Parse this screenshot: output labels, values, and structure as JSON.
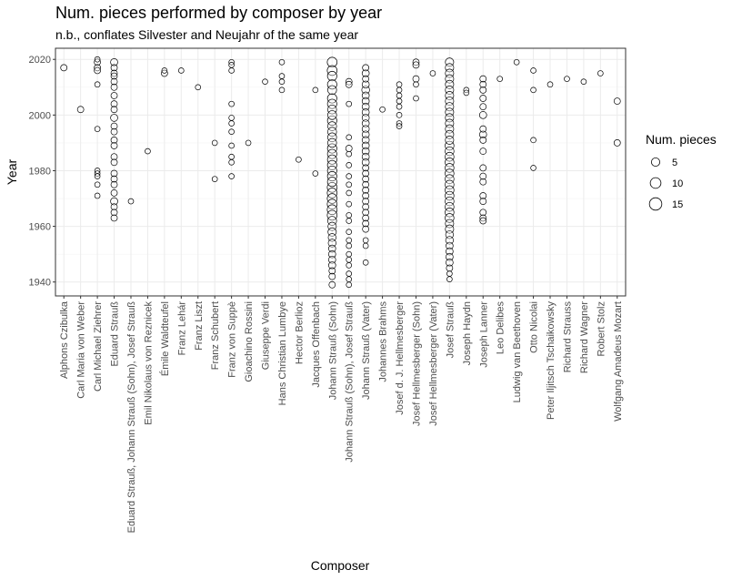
{
  "chart_data": {
    "type": "scatter",
    "title": "Num. pieces performed by composer by year",
    "subtitle": "n.b., conflates Silvester and Neujahr of the same year",
    "xlabel": "Composer",
    "ylabel": "Year",
    "ylim": [
      1935,
      2024
    ],
    "yticks": [
      1940,
      1960,
      1980,
      2000,
      2020
    ],
    "grid": true,
    "legend": {
      "title": "Num. pieces",
      "placement": "right",
      "entries": [
        5,
        10,
        15
      ]
    },
    "categories": [
      "Alphons Czibulka",
      "Carl Maria von Weber",
      "Carl Michael Ziehrer",
      "Eduard Strauß",
      "Eduard Strauß, Johann Strauß (Sohn), Josef Strauß",
      "Emil Nikolaus von Reznicek",
      "Émile Waldteufel",
      "Franz Lehár",
      "Franz Liszt",
      "Franz Schubert",
      "Franz von Suppè",
      "Gioachino Rossini",
      "Giuseppe Verdi",
      "Hans Christian Lumbye",
      "Hector Berlioz",
      "Jacques Offenbach",
      "Johann Strauß (Sohn)",
      "Johann Strauß (Sohn), Josef Strauß",
      "Johann Strauß (Vater)",
      "Johannes Brahms",
      "Josef d. J. Hellmesberger",
      "Josef Hellmesberger (Sohn)",
      "Josef Hellmesberger (Vater)",
      "Josef Strauß",
      "Joseph Haydn",
      "Joseph Lanner",
      "Leo Delibes",
      "Ludwig van Beethoven",
      "Otto Nicolai",
      "Peter Iljitsch Tschaikowsky",
      "Richard Strauss",
      "Richard Wagner",
      "Robert Stolz",
      "Wolfgang Amadeus Mozart"
    ],
    "points": [
      {
        "c": "Alphons Czibulka",
        "pairs": [
          [
            2017,
            2
          ]
        ]
      },
      {
        "c": "Carl Maria von Weber",
        "pairs": [
          [
            2002,
            2
          ]
        ]
      },
      {
        "c": "Carl Michael Ziehrer",
        "pairs": [
          [
            2020,
            1
          ],
          [
            2019,
            2
          ],
          [
            2017,
            2
          ],
          [
            2016,
            2
          ],
          [
            2011,
            1
          ],
          [
            1995,
            1
          ],
          [
            1980,
            1
          ],
          [
            1979,
            1
          ],
          [
            1978,
            1
          ],
          [
            1975,
            1
          ],
          [
            1971,
            1
          ]
        ]
      },
      {
        "c": "Eduard Strauß",
        "pairs": [
          [
            2019,
            3
          ],
          [
            2017,
            2
          ],
          [
            2015,
            2
          ],
          [
            2014,
            2
          ],
          [
            2012,
            2
          ],
          [
            2010,
            2
          ],
          [
            2007,
            2
          ],
          [
            2004,
            2
          ],
          [
            2002,
            2
          ],
          [
            1999,
            3
          ],
          [
            1996,
            2
          ],
          [
            1994,
            2
          ],
          [
            1991,
            2
          ],
          [
            1989,
            2
          ],
          [
            1985,
            2
          ],
          [
            1983,
            2
          ],
          [
            1979,
            2
          ],
          [
            1977,
            2
          ],
          [
            1975,
            2
          ],
          [
            1972,
            2
          ],
          [
            1969,
            3
          ],
          [
            1967,
            2
          ],
          [
            1965,
            2
          ],
          [
            1963,
            2
          ]
        ]
      },
      {
        "c": "Eduard Strauß, Johann Strauß (Sohn), Josef Strauß",
        "pairs": [
          [
            1969,
            1
          ]
        ]
      },
      {
        "c": "Emil Nikolaus von Reznicek",
        "pairs": [
          [
            1987,
            1
          ]
        ]
      },
      {
        "c": "Émile Waldteufel",
        "pairs": [
          [
            2016,
            1
          ],
          [
            2015,
            2
          ]
        ]
      },
      {
        "c": "Franz Lehár",
        "pairs": [
          [
            2016,
            1
          ]
        ]
      },
      {
        "c": "Franz Liszt",
        "pairs": [
          [
            2010,
            1
          ]
        ]
      },
      {
        "c": "Franz Schubert",
        "pairs": [
          [
            1990,
            1
          ],
          [
            1977,
            1
          ]
        ]
      },
      {
        "c": "Franz von Suppè",
        "pairs": [
          [
            2019,
            1
          ],
          [
            2018,
            1
          ],
          [
            2016,
            1
          ],
          [
            2004,
            1
          ],
          [
            1999,
            1
          ],
          [
            1997,
            1
          ],
          [
            1994,
            1
          ],
          [
            1989,
            1
          ],
          [
            1985,
            1
          ],
          [
            1983,
            1
          ],
          [
            1978,
            1
          ]
        ]
      },
      {
        "c": "Gioachino Rossini",
        "pairs": [
          [
            1990,
            1
          ]
        ]
      },
      {
        "c": "Giuseppe Verdi",
        "pairs": [
          [
            2012,
            1
          ]
        ]
      },
      {
        "c": "Hans Christian Lumbye",
        "pairs": [
          [
            2019,
            1
          ],
          [
            2014,
            1
          ],
          [
            2012,
            1
          ],
          [
            2009,
            1
          ]
        ]
      },
      {
        "c": "Hector Berlioz",
        "pairs": [
          [
            1984,
            1
          ]
        ]
      },
      {
        "c": "Jacques Offenbach",
        "pairs": [
          [
            2009,
            1
          ],
          [
            1979,
            1
          ]
        ]
      },
      {
        "c": "Johann Strauß (Sohn)",
        "pairs": [
          [
            2019,
            8
          ],
          [
            2016,
            8
          ],
          [
            2014,
            7
          ],
          [
            2011,
            7
          ],
          [
            2009,
            6
          ],
          [
            2006,
            7
          ],
          [
            2004,
            7
          ],
          [
            2002,
            6
          ],
          [
            2000,
            6
          ],
          [
            1998,
            7
          ],
          [
            1996,
            6
          ],
          [
            1994,
            6
          ],
          [
            1992,
            6
          ],
          [
            1990,
            6
          ],
          [
            1988,
            7
          ],
          [
            1986,
            7
          ],
          [
            1984,
            7
          ],
          [
            1982,
            7
          ],
          [
            1980,
            7
          ],
          [
            1978,
            7
          ],
          [
            1976,
            7
          ],
          [
            1974,
            8
          ],
          [
            1972,
            8
          ],
          [
            1970,
            8
          ],
          [
            1968,
            8
          ],
          [
            1966,
            8
          ],
          [
            1964,
            8
          ],
          [
            1962,
            6
          ],
          [
            1960,
            5
          ],
          [
            1958,
            5
          ],
          [
            1956,
            4
          ],
          [
            1954,
            4
          ],
          [
            1952,
            3
          ],
          [
            1950,
            3
          ],
          [
            1948,
            3
          ],
          [
            1946,
            3
          ],
          [
            1944,
            2
          ],
          [
            1942,
            2
          ],
          [
            1939,
            2
          ]
        ]
      },
      {
        "c": "Johann Strauß (Sohn), Josef Strauß",
        "pairs": [
          [
            2012,
            2
          ],
          [
            2011,
            2
          ],
          [
            2004,
            1
          ],
          [
            1992,
            1
          ],
          [
            1988,
            2
          ],
          [
            1986,
            1
          ],
          [
            1982,
            1
          ],
          [
            1978,
            1
          ],
          [
            1975,
            1
          ],
          [
            1972,
            1
          ],
          [
            1968,
            1
          ],
          [
            1964,
            1
          ],
          [
            1962,
            1
          ],
          [
            1958,
            1
          ],
          [
            1955,
            1
          ],
          [
            1953,
            1
          ],
          [
            1950,
            1
          ],
          [
            1948,
            1
          ],
          [
            1946,
            1
          ],
          [
            1943,
            1
          ],
          [
            1941,
            1
          ],
          [
            1939,
            1
          ]
        ]
      },
      {
        "c": "Johann Strauß (Vater)",
        "pairs": [
          [
            2017,
            2
          ],
          [
            2015,
            3
          ],
          [
            2013,
            2
          ],
          [
            2011,
            3
          ],
          [
            2009,
            4
          ],
          [
            2007,
            3
          ],
          [
            2005,
            3
          ],
          [
            2003,
            3
          ],
          [
            2001,
            3
          ],
          [
            1999,
            3
          ],
          [
            1997,
            3
          ],
          [
            1995,
            3
          ],
          [
            1993,
            3
          ],
          [
            1991,
            3
          ],
          [
            1989,
            3
          ],
          [
            1987,
            3
          ],
          [
            1985,
            3
          ],
          [
            1983,
            3
          ],
          [
            1981,
            2
          ],
          [
            1979,
            2
          ],
          [
            1977,
            2
          ],
          [
            1975,
            2
          ],
          [
            1973,
            2
          ],
          [
            1971,
            2
          ],
          [
            1969,
            2
          ],
          [
            1967,
            2
          ],
          [
            1965,
            2
          ],
          [
            1963,
            2
          ],
          [
            1961,
            2
          ],
          [
            1959,
            2
          ],
          [
            1955,
            1
          ],
          [
            1953,
            1
          ],
          [
            1947,
            1
          ]
        ]
      },
      {
        "c": "Johannes Brahms",
        "pairs": [
          [
            2002,
            1
          ]
        ]
      },
      {
        "c": "Josef d. J. Hellmesberger",
        "pairs": [
          [
            2011,
            1
          ],
          [
            2009,
            1
          ],
          [
            2007,
            1
          ],
          [
            2005,
            1
          ],
          [
            2003,
            1
          ],
          [
            2000,
            1
          ],
          [
            1997,
            1
          ],
          [
            1996,
            1
          ]
        ]
      },
      {
        "c": "Josef Hellmesberger (Sohn)",
        "pairs": [
          [
            2019,
            2
          ],
          [
            2018,
            2
          ],
          [
            2013,
            2
          ],
          [
            2011,
            1
          ],
          [
            2006,
            1
          ]
        ]
      },
      {
        "c": "Josef Hellmesberger (Vater)",
        "pairs": [
          [
            2015,
            1
          ]
        ]
      },
      {
        "c": "Josef Strauß",
        "pairs": [
          [
            2019,
            5
          ],
          [
            2017,
            5
          ],
          [
            2015,
            5
          ],
          [
            2013,
            5
          ],
          [
            2011,
            5
          ],
          [
            2009,
            5
          ],
          [
            2007,
            5
          ],
          [
            2005,
            5
          ],
          [
            2003,
            5
          ],
          [
            2001,
            5
          ],
          [
            1999,
            5
          ],
          [
            1997,
            5
          ],
          [
            1995,
            5
          ],
          [
            1993,
            5
          ],
          [
            1991,
            5
          ],
          [
            1989,
            6
          ],
          [
            1987,
            6
          ],
          [
            1985,
            6
          ],
          [
            1983,
            6
          ],
          [
            1981,
            6
          ],
          [
            1979,
            6
          ],
          [
            1977,
            6
          ],
          [
            1975,
            6
          ],
          [
            1973,
            6
          ],
          [
            1971,
            6
          ],
          [
            1969,
            6
          ],
          [
            1967,
            6
          ],
          [
            1965,
            6
          ],
          [
            1963,
            6
          ],
          [
            1961,
            5
          ],
          [
            1959,
            5
          ],
          [
            1957,
            4
          ],
          [
            1955,
            4
          ],
          [
            1953,
            3
          ],
          [
            1951,
            3
          ],
          [
            1949,
            3
          ],
          [
            1947,
            3
          ],
          [
            1945,
            2
          ],
          [
            1943,
            1
          ],
          [
            1941,
            1
          ]
        ]
      },
      {
        "c": "Joseph Haydn",
        "pairs": [
          [
            2009,
            1
          ],
          [
            2008,
            1
          ]
        ]
      },
      {
        "c": "Joseph Lanner",
        "pairs": [
          [
            2013,
            2
          ],
          [
            2011,
            2
          ],
          [
            2009,
            2
          ],
          [
            2006,
            2
          ],
          [
            2003,
            2
          ],
          [
            2000,
            3
          ],
          [
            1995,
            2
          ],
          [
            1993,
            3
          ],
          [
            1991,
            2
          ],
          [
            1987,
            2
          ],
          [
            1981,
            2
          ],
          [
            1978,
            2
          ],
          [
            1976,
            2
          ],
          [
            1971,
            2
          ],
          [
            1969,
            2
          ],
          [
            1965,
            2
          ],
          [
            1963,
            2
          ],
          [
            1962,
            2
          ]
        ]
      },
      {
        "c": "Leo Delibes",
        "pairs": [
          [
            2013,
            1
          ]
        ]
      },
      {
        "c": "Ludwig van Beethoven",
        "pairs": [
          [
            2019,
            1
          ]
        ]
      },
      {
        "c": "Otto Nicolai",
        "pairs": [
          [
            2016,
            1
          ],
          [
            2009,
            1
          ],
          [
            1991,
            1
          ],
          [
            1981,
            1
          ]
        ]
      },
      {
        "c": "Peter Iljitsch Tschaikowsky",
        "pairs": [
          [
            2011,
            1
          ]
        ]
      },
      {
        "c": "Richard Strauss",
        "pairs": [
          [
            2013,
            1
          ]
        ]
      },
      {
        "c": "Richard Wagner",
        "pairs": [
          [
            2012,
            1
          ]
        ]
      },
      {
        "c": "Robert Stolz",
        "pairs": [
          [
            2015,
            1
          ]
        ]
      },
      {
        "c": "Wolfgang Amadeus Mozart",
        "pairs": [
          [
            2005,
            2
          ],
          [
            1990,
            2
          ]
        ]
      }
    ]
  }
}
